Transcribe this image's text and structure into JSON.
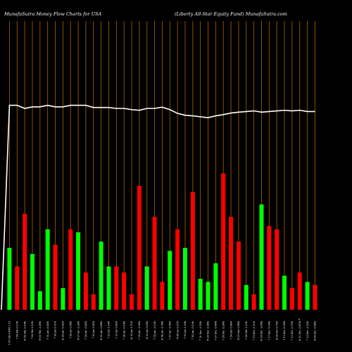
{
  "header": {
    "left_title": "MunafaSutra  Money Flow  Charts for USA",
    "right_title": "(Liberty All-Star Equity Fund) MunafaSutra.com"
  },
  "colors": {
    "background": "#000000",
    "up": "#00ff00",
    "down": "#ff0000",
    "grid": "#b36200",
    "line": "#ffffff",
    "text": "#ffffff"
  },
  "chart_data": {
    "type": "bar",
    "title": "",
    "xlabel": "",
    "ylabel": "",
    "grid": true,
    "categories": [
      "F 07 Feb 2025 0.84% 7.15 7.19 7.21 7.16 7.19 7.15 7.19 7.18",
      "T 06 Feb 2025 0.17% 7.15 7.16 7.17 7.16",
      "W 05 Feb 2025 -0.14% 7.16 7.20 7.21 7.15",
      "T 04 Feb 2025 1.12% 7.09 7.18 7.22 7.09",
      "M 03 Feb 2025 -1.26% 7.14 7.10 7.16 7.02",
      "F 31 Jan 2025 -0.42% 7.19 7.19 7.20 7.17",
      "T 30 Jan 2025 0.71% 7.17 7.17 7.21 7.10",
      "W 29 Jan 2025 -0.42% 7.16 7.15 7.17 7.13",
      "T 28 Jan 2025 0.56% 7.10 7.13 7.15 7.08",
      "M 27 Jan 2025 -1.39% 7.18 7.16 7.19 7.10",
      "F 24 Jan 2025 -0.42% 7.25 7.20 7.26 7.19",
      "T 23 Jan 2025 0.42% 7.17 7.20 7.21 7.17",
      "W 22 Jan 2025 -0.84% 7.24 7.19 7.27 7.17",
      "T 21 Jan 2025 1.14% 7.21 7.23 7.24 7.17",
      "F 17 Jan 2025 0.42% 7.15 7.15 7.16 7.13",
      "T 16 Jan 2025 -0.14% 7.16 7.12 7.17 7.11",
      "W 15 Jan 2025 1.71% 7.03 7.12 7.12 7.03",
      "T 14 Jan 2025 -1.04% 7.10 7.00 7.10 6.98",
      "M 13 Jan 2025 0.29% 7.08 7.07 7.09 7.03",
      "F 10 Jan 2025 -2.13% 7.20 7.05 7.20 7.04",
      "W 08 Jan 2025 -1.78% 7.29 7.20 7.29 7.15",
      "T 07 Jan 2025 -1.40% 7.43 7.33 7.43 7.30",
      "M 06 Jan 2025 0.27% 7.44 7.44 7.47 7.42",
      "F 03 Jan 2025 1.10% 7.33 7.37 7.39 7.29",
      "T 02 Jan 2025 -0.13% 7.36 7.34 7.36 7.27",
      "T 31 Dec 2024 -1.35% 7.45 7.37 7.48 7.35",
      "M 30 Dec 2024 -1.98% 7.58 7.47 7.58 7.41",
      "F 27 Dec 2024 -0.40% 7.61 7.62 7.63 7.58",
      "T 26 Dec 2024 -0.26% 7.59 7.65 7.67 7.59",
      "T 24 Dec 2024 0.66% 7.60 7.67 7.67 7.58",
      "M 23 Dec 2024 0.66% 7.57 7.62 7.64 7.55",
      "F 20 Dec 2024 1.12% 7.40 7.57 7.63 7.40",
      "T 19 Dec 2024 -2.11% 7.57 7.49 7.59 7.48",
      "W 18 Dec 2024 -3.04% 7.90 7.65 7.91 7.62",
      "T 17 Dec 2024 -0.50% 7.89 7.89 7.89 7.85",
      "M 16 Dec 2024 0.75% 7.85 7.93 7.94 7.80",
      "F 13 Dec 2024 -0.50% 7.93 7.87 7.95 7.86",
      "T 12 Dec 2024 -0.75% 7.99 7.91 7.99 7.89",
      "W 11 Dec 2024 -0.87% 8.02 7.97 8.04 7.93",
      "T 10 Dec 2024 -1.23% 8.08 8.04 8.10 8.04",
      "M 09 Dec 2024 -0.49% 8.14 8.14 8.18 8.08",
      "F 06 Dec 2024 0.12% 8.14 8.16 8.19 8.13",
      "T 05 Dec 2024 -0.73% 8.18 8.17 8.20 8.14",
      "W 04 Dec 2024 0.49% 8.11 8.22 8.25 8.11",
      "T 03 Dec 2024 -0.61% 8.20 8.19 8.20 8.14",
      "M 02 Dec 2024 0.61% 8.18 8.24 8.27 8.17",
      "F 29 Nov 2024 0.37% 8.16 8.19 8.21 8.15",
      "W 27 Nov 2024 -0.25% 8.19 8.16 8.20 8.12",
      "T 26 Nov 2024 0.50% 8.15 8.18 8.19 8.12",
      "M 25 Nov 2024 -0.23% 8.09 8.14 8.17 8.08",
      "F 22 Nov 2024 1.00% 8.05 8.13 8.14 8.05",
      "T 21 Nov 2024 -0.25% 8.10 8.05 8.11 8.02",
      "W 20 Nov 2024 0.37% 8.05 8.07 8.09 8.02",
      "T 19 Nov 2024 -0.84% 8.05 8.04 8.07 7.99",
      "M 18 Nov 2024 0.84% 8.03 8.11 8.13 8.03",
      "F 15 Nov 2024 -1.36% 8.13 8.04 8.15 8.03",
      "T 14 Nov 2024 -0.61% 8.23 8.15 8.25 8.14",
      "W 13 Nov 2024 -0.24% 8.25 8.20 8.26 8.18",
      "T 12 Nov 2024 -0.36% 8.29 8.22 8.30 8.20"
    ],
    "x_axis_labels": [
      "F 07 Feb 2025 0.84% 7.15",
      "T 06 Feb 2025 0.17% 7.15",
      "W 05 Feb 2025 -0.14% 7.16",
      "T 04 Feb 2025 1.12% 7.09",
      "M 03 Feb 2025 -1.26% 7.14",
      "F 31 Jan 2025 -0.42% 7.19",
      "T 30 Jan 2025 0.71% 7.17",
      "W 29 Jan 2025 -0.42% 7.16",
      "T 28 Jan 2025 0.56% 7.10",
      "M 27 Jan 2025 -1.39% 7.18",
      "F 24 Jan 2025 -0.42% 7.25",
      "T 23 Jan 2025 0.42% 7.17",
      "W 22 Jan 2025 -0.84% 7.24",
      "T 21 Jan 2025 1.14% 7.21",
      "F 17 Jan 2025 0.42% 7.15",
      "T 16 Jan 2025 -0.14% 7.16",
      "W 15 Jan 2025 1.71% 7.03",
      "T 14 Jan 2025 -1.04% 7.10",
      "M 13 Jan 2025 0.29% 7.08",
      "F 10 Jan 2025 -2.13% 7.20",
      "W 08 Jan 2025 -1.78% 7.29",
      "T 07 Jan 2025 -1.40% 7.43",
      "M 06 Jan 2025 0.27% 7.44",
      "F 03 Jan 2025 1.10% 7.33",
      "T 02 Jan 2025 -0.13% 7.36",
      "T 31 Dec 2024 -1.35% 7.45",
      "M 30 Dec 2024 -1.98% 7.58",
      "F 27 Dec 2024 -0.40% 7.61",
      "T 26 Dec 2024 -0.26% 7.59",
      "T 24 Dec 2024 0.66% 7.60",
      "M 23 Dec 2024 0.66% 7.57",
      "F 20 Dec 2024 1.12% 7.40",
      "T 19 Dec 2024 -2.11% 7.57",
      "W 18 Dec 2024 -3.04% 7.90",
      "T 17 Dec 2024 -0.50% 7.89",
      "M 16 Dec 2024 0.75% 7.85",
      "F 13 Dec 2024 -0.50% 7.93",
      "T 12 Dec 2024 -0.75% 7.99",
      "W 11 Dec 2024 -0.87% 8.02",
      "T 10 Dec 2024 -1.23% 8.08",
      "M 09 Dec 2024 -0.49% 8.14",
      "F 06 Dec 2024 0.12% 8.14",
      "T 05 Dec 2024 -0.73% 8.18",
      "W 04 Dec 2024 0.49% 8.11",
      "T 03 Dec 2024 -0.61% 8.20",
      "M 02 Dec 2024 0.61% 8.18",
      "F 29 Nov 2024 0.37% 8.16",
      "W 27 Nov 2024 -0.25% 8.19",
      "T 26 Nov 2024 0.50% 8.15",
      "M 25 Nov 2024 -0.23% 8.09",
      "F 22 Nov 2024 1.00% 8.05",
      "T 21 Nov 2024 -0.25% 8.10",
      "W 20 Nov 2024 0.37% 8.05",
      "T 19 Nov 2024 -0.84% 8.05",
      "M 18 Nov 2024 0.84% 8.03",
      "F 15 Nov 2024 -1.36% 8.13",
      "T 14 Nov 2024 -0.61% 8.23",
      "W 13 Nov 2024 -0.24% 8.25",
      "T 12 Nov 2024 -0.36% 8.29"
    ],
    "x_labels": [
      "F 07 Feb 0.84% 7.15",
      "T 06 Feb 0.17%",
      "W 05 Feb -0.14%",
      "T 04 Feb 1.12%",
      "M 03 Feb -1.26%",
      "F 31 Jan -0.42%",
      "T 30 Jan 0.71%",
      "W 29 Jan -0.42%",
      "T 28 Jan 0.56%",
      "M 27 Jan -1.39%",
      "F 24 Jan -0.42%",
      "T 23 Jan 0.42%",
      "W 22 Jan -0.84%",
      "T 21 Jan 1.14%",
      "F 17 Jan 0.42%",
      "T 16 Jan -0.14%",
      "W 15 Jan 1.71%",
      "T 14 Jan -1.04%",
      "M 13 Jan 0.29%",
      "F 10 Jan -2.13%",
      "W 08 Jan -1.78%",
      "T 07 Jan -1.40%",
      "M 06 Jan 0.27%",
      "F 03 Jan 1.10%",
      "T 02 Jan -0.13%",
      "T 31 Dec -1.35%",
      "M 30 Dec -1.98%",
      "F 27 Dec -0.40%",
      "T 26 Dec -0.26%",
      "T 24 Dec 0.66%",
      "M 23 Dec 0.66%",
      "F 20 Dec 1.12%",
      "T 19 Dec -2.11%",
      "W 18 Dec -3.04%",
      "T 17 Dec -0.50%",
      "M 16 Dec 0.75%",
      "F 13 Dec -0.50%",
      "T 12 Dec -0.75%",
      "W 11 Dec -0.87%",
      "T 10 Dec -1.23%",
      "M 09 Dec -0.49%"
    ],
    "bar_colors": [
      "green",
      "red",
      "red",
      "green",
      "green",
      "green",
      "red",
      "green",
      "red",
      "green",
      "red",
      "red",
      "green",
      "green",
      "red",
      "red",
      "red",
      "red",
      "green",
      "red",
      "red",
      "green",
      "red",
      "green",
      "red",
      "green",
      "green",
      "green",
      "red",
      "red",
      "red",
      "green",
      "red",
      "green",
      "red",
      "red",
      "green",
      "red",
      "red",
      "green",
      "red"
    ],
    "bar_values": [
      20,
      14,
      31,
      18,
      6,
      26,
      21,
      7,
      26,
      25,
      12,
      5,
      22,
      14,
      14,
      12,
      5,
      40,
      14,
      30,
      9,
      19,
      26,
      20,
      38,
      10,
      9,
      15,
      44,
      30,
      22,
      8,
      5,
      34,
      27,
      26,
      11,
      7,
      12,
      9,
      8
    ],
    "line_values": [
      66,
      66,
      65,
      65.5,
      65.5,
      66,
      65.5,
      65.5,
      66,
      66,
      66,
      65.3,
      65.3,
      65.3,
      65,
      65,
      64.6,
      64.4,
      65,
      65,
      65.4,
      64.6,
      63.4,
      62.8,
      62.6,
      62.3,
      62,
      62.6,
      63,
      63.5,
      63.8,
      64,
      64.2,
      63.8,
      64,
      64.2,
      64.4,
      64.2,
      64.4,
      64,
      64
    ],
    "ylim": [
      0,
      100
    ]
  },
  "x_marker_label": "$"
}
